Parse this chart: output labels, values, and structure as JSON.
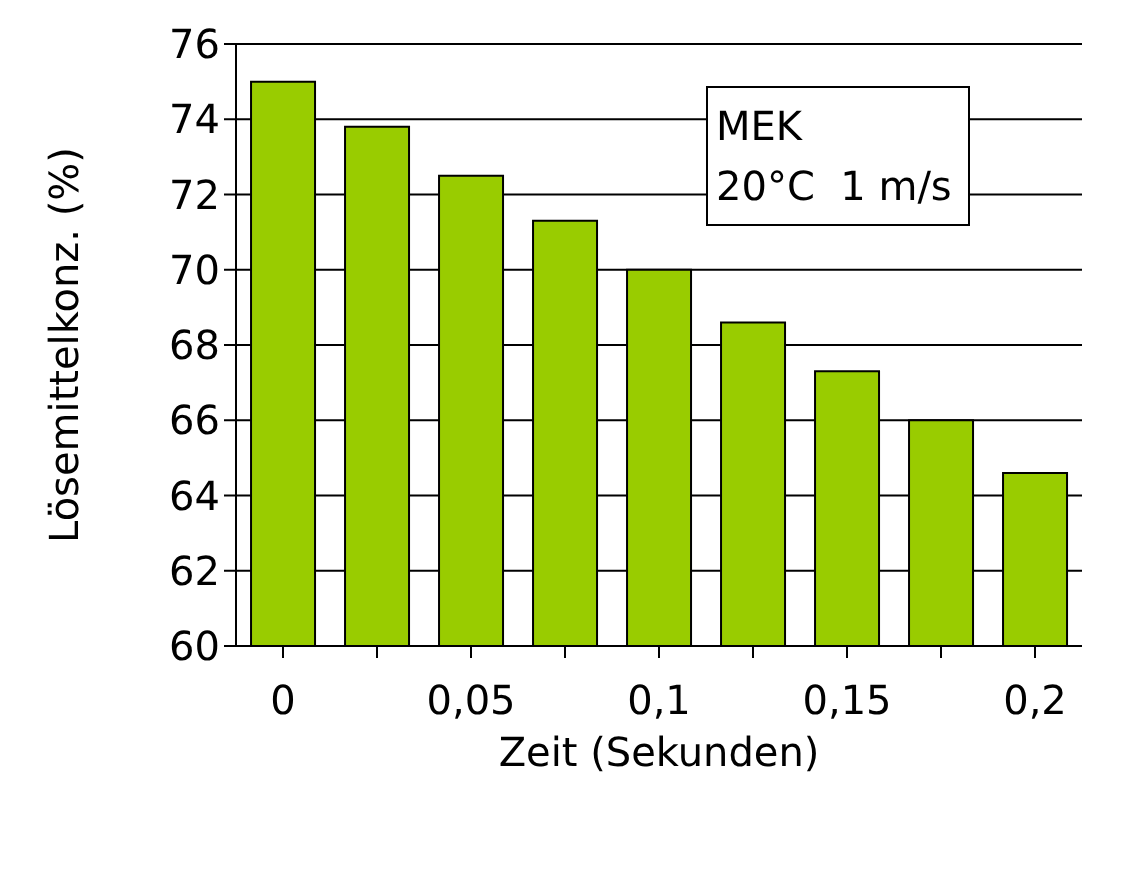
{
  "chart_data": {
    "type": "bar",
    "xlabel": "Zeit (Sekunden)",
    "ylabel": "Lösemittelkonz. (%)",
    "categories": [
      "0",
      null,
      "0,05",
      null,
      "0,1",
      null,
      "0,15",
      null,
      "0,2"
    ],
    "values": [
      75,
      73.8,
      72.5,
      71.3,
      70,
      68.6,
      67.3,
      66,
      64.6
    ],
    "color": "#99cc00",
    "ylim": [
      60,
      76
    ],
    "yticks": [
      60,
      62,
      64,
      66,
      68,
      70,
      72,
      74,
      76
    ],
    "grid": "y",
    "annotations": [
      "MEK",
      "20°C  1 m/s"
    ]
  }
}
